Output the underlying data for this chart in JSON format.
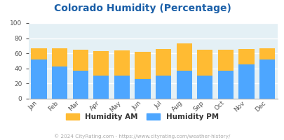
{
  "title": "Colorado Humidity (Percentage)",
  "months": [
    "Jan",
    "Feb",
    "Mar",
    "Apr",
    "May",
    "Jun",
    "Jul",
    "Aug",
    "Sep",
    "Oct",
    "Nov",
    "Dec"
  ],
  "humidity_pm": [
    52,
    43,
    37,
    31,
    31,
    26,
    31,
    37,
    31,
    37,
    45,
    52
  ],
  "humidity_am": [
    15,
    24,
    28,
    32,
    33,
    36,
    35,
    36,
    34,
    28,
    21,
    15
  ],
  "color_pm": "#4da6ff",
  "color_am": "#ffbb33",
  "ylim": [
    0,
    100
  ],
  "yticks": [
    0,
    20,
    40,
    60,
    80,
    100
  ],
  "bg_color": "#e4f0f5",
  "title_color": "#1a5fa8",
  "footer_text": "© 2024 CityRating.com - https://www.cityrating.com/weather-history/",
  "footer_color": "#aaaaaa",
  "legend_am": "Humidity AM",
  "legend_pm": "Humidity PM"
}
